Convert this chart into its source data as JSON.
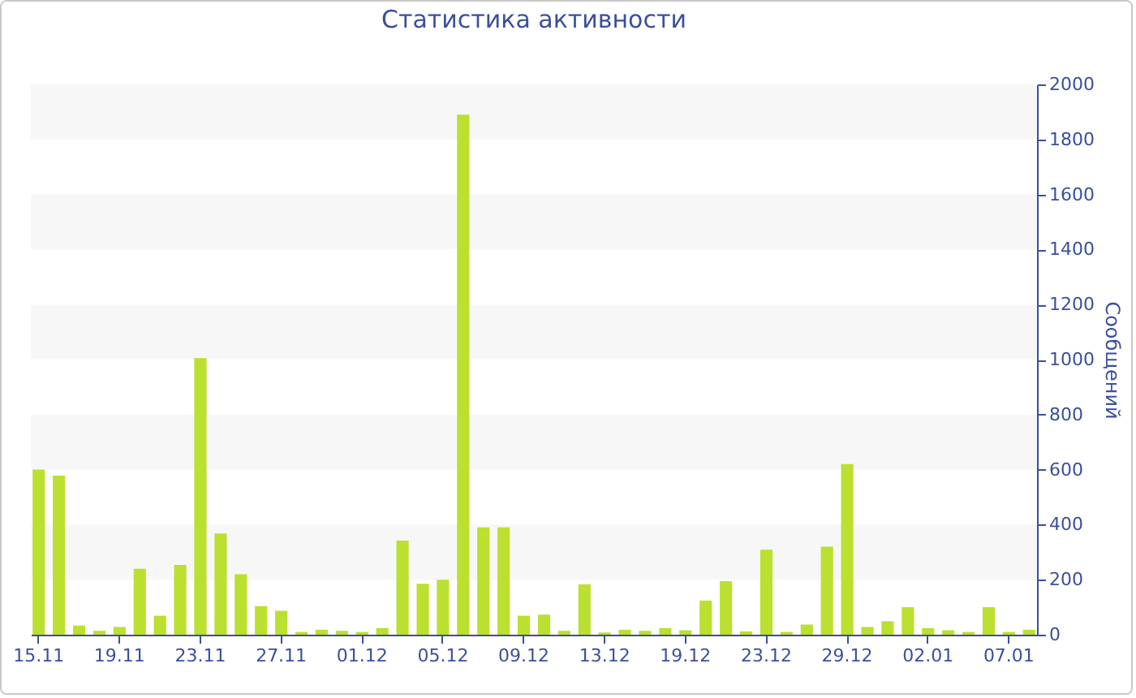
{
  "chart_data": {
    "type": "bar",
    "title": "Статистика активности",
    "ylabel": "Сообщений",
    "categories": [
      "15.11",
      null,
      null,
      null,
      "19.11",
      null,
      null,
      null,
      "23.11",
      null,
      null,
      null,
      "27.11",
      null,
      null,
      null,
      "01.12",
      null,
      null,
      null,
      "05.12",
      null,
      null,
      null,
      "09.12",
      null,
      null,
      null,
      "13.12",
      null,
      null,
      null,
      "19.12",
      null,
      null,
      null,
      "23.12",
      null,
      null,
      null,
      "29.12",
      null,
      null,
      null,
      "02.01",
      null,
      null,
      null,
      "07.01",
      null
    ],
    "values": [
      600,
      578,
      33,
      14,
      28,
      240,
      69,
      254,
      1005,
      368,
      220,
      104,
      87,
      10,
      18,
      14,
      10,
      24,
      342,
      185,
      200,
      1890,
      390,
      390,
      69,
      73,
      14,
      183,
      8,
      18,
      14,
      24,
      16,
      124,
      195,
      12,
      309,
      10,
      37,
      320,
      620,
      28,
      49,
      100,
      24,
      16,
      10,
      100,
      10,
      18
    ],
    "color": "#bbe02f",
    "ylim": [
      0,
      2000
    ],
    "yticks": [
      0,
      200,
      400,
      600,
      800,
      1000,
      1200,
      1400,
      1600,
      1800,
      2000
    ]
  }
}
